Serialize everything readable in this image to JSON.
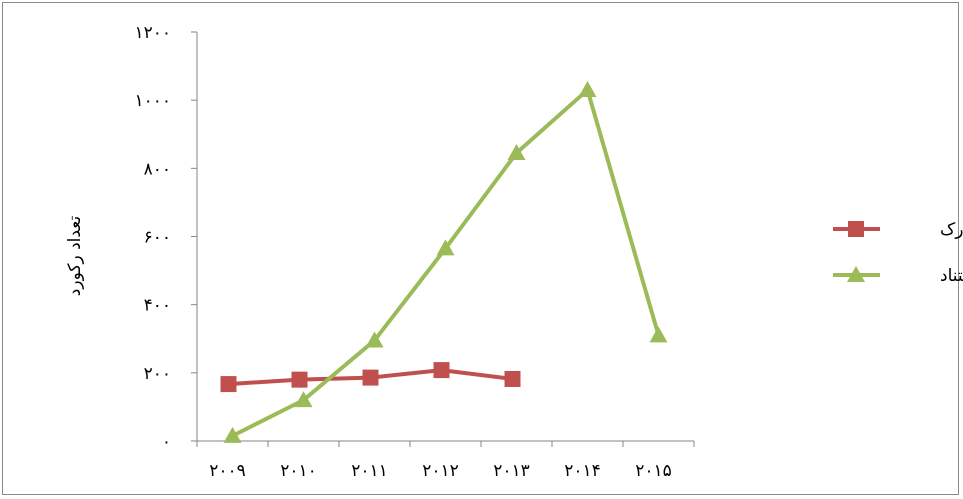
{
  "chart_data": {
    "type": "line",
    "title": "",
    "xlabel": "",
    "ylabel": "تعداد رکورد",
    "categories": [
      "۲۰۰۹",
      "۲۰۱۰",
      "۲۰۱۱",
      "۲۰۱۲",
      "۲۰۱۳",
      "۲۰۱۴",
      "۲۰۱۵"
    ],
    "yticks": [
      0,
      200,
      400,
      600,
      800,
      1000,
      1200
    ],
    "ytick_labels": [
      "۰",
      "۲۰۰",
      "۴۰۰",
      "۶۰۰",
      "۸۰۰",
      "۱۰۰۰",
      "۱۲۰۰"
    ],
    "ylim": [
      0,
      1200
    ],
    "grid": false,
    "legend_position": "right",
    "series": [
      {
        "name": "مدرک",
        "color": "#c0504d",
        "marker": "square",
        "values": [
          167,
          180,
          186,
          208,
          182,
          null,
          null
        ]
      },
      {
        "name": "استناد",
        "color": "#9bbb59",
        "marker": "triangle",
        "values": [
          15,
          120,
          295,
          565,
          845,
          1030,
          310
        ]
      }
    ]
  }
}
